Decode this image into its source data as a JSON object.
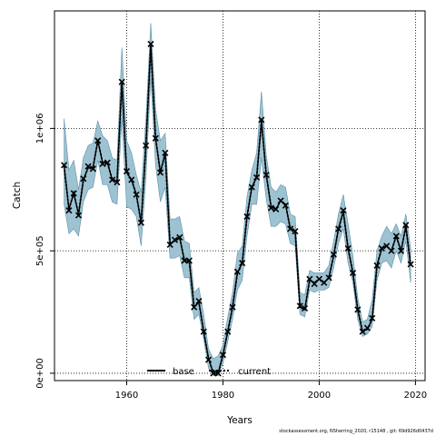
{
  "chart_data": {
    "type": "line",
    "xlabel": "Years",
    "ylabel": "Catch",
    "xlim": [
      1945,
      2022
    ],
    "ylim": [
      -30000,
      1480000
    ],
    "x_ticks": [
      1960,
      1980,
      2000,
      2020
    ],
    "y_ticks": [
      0,
      500000,
      1000000
    ],
    "y_tick_labels": [
      "0e+00",
      "5e+05",
      "1e+06"
    ],
    "grid": true,
    "legend_position": "bottom",
    "legend": [
      {
        "name": "base",
        "style": "solid"
      },
      {
        "name": "current",
        "style": "dotted"
      }
    ],
    "colors": {
      "band_fill": "#9dc3d3",
      "band_stroke": "#5f8fa6",
      "line": "#000000"
    },
    "series": [
      {
        "name": "base",
        "x": [
          1947,
          1948,
          1949,
          1950,
          1951,
          1952,
          1953,
          1954,
          1955,
          1956,
          1957,
          1958,
          1959,
          1960,
          1961,
          1962,
          1963,
          1964,
          1965,
          1966,
          1967,
          1968,
          1969,
          1970,
          1971,
          1972,
          1973,
          1974,
          1975,
          1976,
          1977,
          1978,
          1979,
          1980,
          1981,
          1982,
          1983,
          1984,
          1985,
          1986,
          1987,
          1988,
          1989,
          1990,
          1991,
          1992,
          1993,
          1994,
          1995,
          1996,
          1997,
          1998,
          1999,
          2000,
          2001,
          2002,
          2003,
          2004,
          2005,
          2006,
          2007,
          2008,
          2009,
          2010,
          2011,
          2012,
          2013,
          2014,
          2015,
          2016,
          2017,
          2018,
          2019
        ],
        "y": [
          845000,
          670000,
          735000,
          650000,
          790000,
          840000,
          840000,
          950000,
          860000,
          860000,
          790000,
          785000,
          1190000,
          820000,
          790000,
          730000,
          615000,
          930000,
          1340000,
          960000,
          820000,
          900000,
          530000,
          540000,
          555000,
          460000,
          460000,
          270000,
          290000,
          170000,
          60000,
          0,
          0,
          75000,
          170000,
          270000,
          410000,
          450000,
          640000,
          760000,
          800000,
          1030000,
          810000,
          680000,
          670000,
          705000,
          690000,
          590000,
          580000,
          270000,
          260000,
          380000,
          370000,
          385000,
          370000,
          390000,
          480000,
          590000,
          660000,
          510000,
          410000,
          260000,
          170000,
          180000,
          220000,
          440000,
          510000,
          520000,
          500000,
          560000,
          500000,
          600000,
          440000
        ]
      },
      {
        "name": "current",
        "x": [
          1947,
          1948,
          1949,
          1950,
          1951,
          1952,
          1953,
          1954,
          1955,
          1956,
          1957,
          1958,
          1959,
          1960,
          1961,
          1962,
          1963,
          1964,
          1965,
          1966,
          1967,
          1968,
          1969,
          1970,
          1971,
          1972,
          1973,
          1974,
          1975,
          1976,
          1977,
          1978,
          1979,
          1980,
          1981,
          1982,
          1983,
          1984,
          1985,
          1986,
          1987,
          1988,
          1989,
          1990,
          1991,
          1992,
          1993,
          1994,
          1995,
          1996,
          1997,
          1998,
          1999,
          2000,
          2001,
          2002,
          2003,
          2004,
          2005,
          2006,
          2007,
          2008,
          2009,
          2010,
          2011,
          2012,
          2013,
          2014,
          2015,
          2016,
          2017,
          2018,
          2019
        ],
        "y": [
          845000,
          670000,
          735000,
          650000,
          790000,
          840000,
          840000,
          950000,
          860000,
          860000,
          790000,
          785000,
          1190000,
          820000,
          790000,
          730000,
          615000,
          930000,
          1340000,
          960000,
          820000,
          900000,
          530000,
          540000,
          555000,
          460000,
          460000,
          270000,
          290000,
          170000,
          60000,
          0,
          0,
          75000,
          170000,
          270000,
          410000,
          450000,
          640000,
          760000,
          800000,
          1030000,
          810000,
          680000,
          670000,
          705000,
          690000,
          590000,
          580000,
          270000,
          260000,
          380000,
          370000,
          385000,
          370000,
          390000,
          480000,
          590000,
          660000,
          510000,
          410000,
          260000,
          170000,
          180000,
          220000,
          440000,
          510000,
          520000,
          500000,
          560000,
          500000,
          600000,
          440000
        ]
      },
      {
        "name": "observed",
        "marker": "x",
        "x": [
          1947,
          1948,
          1949,
          1950,
          1951,
          1952,
          1953,
          1954,
          1955,
          1956,
          1957,
          1958,
          1959,
          1960,
          1961,
          1962,
          1963,
          1964,
          1965,
          1966,
          1967,
          1968,
          1969,
          1970,
          1971,
          1972,
          1973,
          1974,
          1975,
          1976,
          1977,
          1978,
          1979,
          1980,
          1981,
          1982,
          1983,
          1984,
          1985,
          1986,
          1987,
          1988,
          1989,
          1990,
          1991,
          1992,
          1993,
          1994,
          1995,
          1996,
          1997,
          1998,
          1999,
          2000,
          2001,
          2002,
          2003,
          2004,
          2005,
          2006,
          2007,
          2008,
          2009,
          2010,
          2011,
          2012,
          2013,
          2014,
          2015,
          2016,
          2017,
          2018,
          2019
        ],
        "y": [
          850000,
          665000,
          735000,
          645000,
          795000,
          845000,
          835000,
          950000,
          855000,
          860000,
          790000,
          780000,
          1190000,
          825000,
          790000,
          730000,
          615000,
          930000,
          1345000,
          960000,
          820000,
          900000,
          525000,
          545000,
          555000,
          460000,
          460000,
          270000,
          295000,
          170000,
          55000,
          0,
          0,
          75000,
          170000,
          270000,
          415000,
          450000,
          640000,
          760000,
          800000,
          1035000,
          810000,
          675000,
          670000,
          705000,
          685000,
          590000,
          580000,
          275000,
          265000,
          385000,
          365000,
          385000,
          370000,
          390000,
          485000,
          590000,
          665000,
          510000,
          410000,
          260000,
          170000,
          185000,
          225000,
          440000,
          510000,
          520000,
          500000,
          560000,
          500000,
          605000,
          445000
        ]
      },
      {
        "name": "base_upper",
        "x": [
          1947,
          1948,
          1949,
          1950,
          1951,
          1952,
          1953,
          1954,
          1955,
          1956,
          1957,
          1958,
          1959,
          1960,
          1961,
          1962,
          1963,
          1964,
          1965,
          1966,
          1967,
          1968,
          1969,
          1970,
          1971,
          1972,
          1973,
          1974,
          1975,
          1976,
          1977,
          1978,
          1979,
          1980,
          1981,
          1982,
          1983,
          1984,
          1985,
          1986,
          1987,
          1988,
          1989,
          1990,
          1991,
          1992,
          1993,
          1994,
          1995,
          1996,
          1997,
          1998,
          1999,
          2000,
          2001,
          2002,
          2003,
          2004,
          2005,
          2006,
          2007,
          2008,
          2009,
          2010,
          2011,
          2012,
          2013,
          2014,
          2015,
          2016,
          2017,
          2018,
          2019
        ],
        "y": [
          1040000,
          830000,
          870000,
          750000,
          880000,
          930000,
          940000,
          1030000,
          970000,
          950000,
          880000,
          870000,
          1330000,
          950000,
          900000,
          810000,
          740000,
          1040000,
          1430000,
          1080000,
          950000,
          980000,
          630000,
          630000,
          640000,
          540000,
          530000,
          330000,
          350000,
          240000,
          100000,
          60000,
          70000,
          115000,
          230000,
          330000,
          490000,
          520000,
          720000,
          830000,
          900000,
          1150000,
          890000,
          760000,
          740000,
          770000,
          760000,
          650000,
          640000,
          330000,
          320000,
          420000,
          410000,
          410000,
          410000,
          440000,
          540000,
          650000,
          730000,
          610000,
          480000,
          310000,
          210000,
          220000,
          300000,
          500000,
          560000,
          600000,
          570000,
          610000,
          560000,
          650000,
          510000
        ]
      },
      {
        "name": "base_lower",
        "x": [
          1947,
          1948,
          1949,
          1950,
          1951,
          1952,
          1953,
          1954,
          1955,
          1956,
          1957,
          1958,
          1959,
          1960,
          1961,
          1962,
          1963,
          1964,
          1965,
          1966,
          1967,
          1968,
          1969,
          1970,
          1971,
          1972,
          1973,
          1974,
          1975,
          1976,
          1977,
          1978,
          1979,
          1980,
          1981,
          1982,
          1983,
          1984,
          1985,
          1986,
          1987,
          1988,
          1989,
          1990,
          1991,
          1992,
          1993,
          1994,
          1995,
          1996,
          1997,
          1998,
          1999,
          2000,
          2001,
          2002,
          2003,
          2004,
          2005,
          2006,
          2007,
          2008,
          2009,
          2010,
          2011,
          2012,
          2013,
          2014,
          2015,
          2016,
          2017,
          2018,
          2019
        ],
        "y": [
          690000,
          570000,
          590000,
          560000,
          700000,
          750000,
          760000,
          870000,
          770000,
          770000,
          700000,
          690000,
          1040000,
          680000,
          670000,
          640000,
          520000,
          800000,
          1210000,
          850000,
          700000,
          760000,
          470000,
          470000,
          480000,
          390000,
          390000,
          220000,
          240000,
          140000,
          20000,
          -10000,
          -10000,
          40000,
          130000,
          220000,
          340000,
          380000,
          560000,
          690000,
          690000,
          880000,
          710000,
          600000,
          600000,
          620000,
          610000,
          530000,
          520000,
          240000,
          230000,
          340000,
          330000,
          340000,
          340000,
          350000,
          430000,
          530000,
          590000,
          450000,
          370000,
          220000,
          150000,
          160000,
          190000,
          380000,
          450000,
          460000,
          430000,
          500000,
          450000,
          540000,
          370000
        ]
      }
    ]
  },
  "footer": "stockassessment.org, NSherring_2020, r15148 , git: 69d926d0437d"
}
